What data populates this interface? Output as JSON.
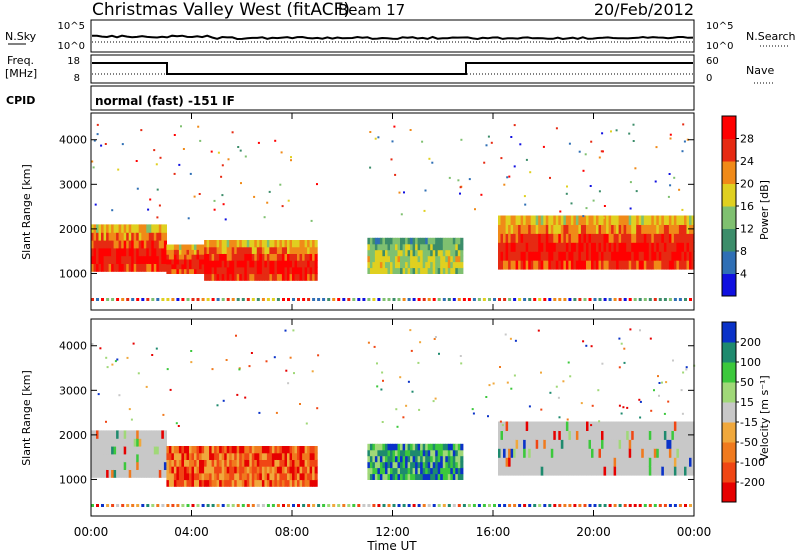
{
  "header": {
    "title": "Christmas Valley West (fitACF)",
    "beam": "Beam 17",
    "date": "20/Feb/2012",
    "mode": "normal (fast) -151 IF",
    "cpid_label": "CPID"
  },
  "panels": {
    "nsky": {
      "left_label": "N.Sky",
      "right_label": "N.Search",
      "ticks_left": [
        "10^5",
        "10^0"
      ],
      "ticks_right": [
        "10^5",
        "10^0"
      ]
    },
    "freq": {
      "left_label_line1": "Freq.",
      "left_label_line2": "[MHz]",
      "right_label": "Nave",
      "ticks_left": [
        "18",
        "8"
      ],
      "ticks_right": [
        "60",
        "0"
      ]
    }
  },
  "chart_data": [
    {
      "type": "heatmap",
      "title": "",
      "xlabel": "Time UT",
      "ylabel": "Slant Range [km]",
      "x_ticks": [
        "00:00",
        "04:00",
        "08:00",
        "12:00",
        "16:00",
        "20:00",
        "00:00"
      ],
      "xlim_hours": [
        0,
        24
      ],
      "y_ticks": [
        1000,
        2000,
        3000,
        4000
      ],
      "ylim_km": [
        180,
        4600
      ],
      "colorbar": {
        "label": "Power [dB]",
        "ticks": [
          4,
          8,
          12,
          16,
          20,
          24,
          28
        ],
        "colors": [
          "#1010e0",
          "#2f6fb5",
          "#3c8d6a",
          "#7fc070",
          "#e0d020",
          "#f08a18",
          "#e62a12",
          "#ff0000"
        ]
      },
      "bands": [
        {
          "t_start": 0.0,
          "t_end": 3.0,
          "r_low": 1050,
          "r_high": 2100,
          "level": "high"
        },
        {
          "t_start": 3.0,
          "t_end": 4.5,
          "r_low": 1000,
          "r_high": 1650,
          "level": "high"
        },
        {
          "t_start": 4.5,
          "t_end": 9.0,
          "r_low": 850,
          "r_high": 1750,
          "level": "high"
        },
        {
          "t_start": 11.0,
          "t_end": 14.8,
          "r_low": 1000,
          "r_high": 1800,
          "level": "mid"
        },
        {
          "t_start": 16.2,
          "t_end": 24.0,
          "r_low": 1100,
          "r_high": 2300,
          "level": "high"
        }
      ]
    },
    {
      "type": "heatmap",
      "title": "",
      "xlabel": "Time UT",
      "ylabel": "Slant Range [km]",
      "x_ticks": [
        "00:00",
        "04:00",
        "08:00",
        "12:00",
        "16:00",
        "20:00",
        "00:00"
      ],
      "xlim_hours": [
        0,
        24
      ],
      "y_ticks": [
        1000,
        2000,
        3000,
        4000
      ],
      "ylim_km": [
        180,
        4600
      ],
      "colorbar": {
        "label": "Velocity [m s⁻¹]",
        "ticks": [
          200,
          100,
          50,
          15,
          -15,
          -50,
          -100,
          -200
        ],
        "colors": [
          "#0a32c8",
          "#1e8a6e",
          "#3cc83c",
          "#a0d878",
          "#c8c8c8",
          "#f0a83c",
          "#f07a1e",
          "#f04614",
          "#e60000"
        ]
      },
      "bands": [
        {
          "t_start": 0.0,
          "t_end": 3.0,
          "r_low": 1050,
          "r_high": 2100,
          "velocity": "ground"
        },
        {
          "t_start": 3.0,
          "t_end": 9.0,
          "r_low": 850,
          "r_high": 1750,
          "velocity": "negative"
        },
        {
          "t_start": 11.0,
          "t_end": 14.8,
          "r_low": 1000,
          "r_high": 1800,
          "velocity": "positive"
        },
        {
          "t_start": 16.2,
          "t_end": 24.0,
          "r_low": 1100,
          "r_high": 2300,
          "velocity": "ground"
        }
      ]
    }
  ]
}
